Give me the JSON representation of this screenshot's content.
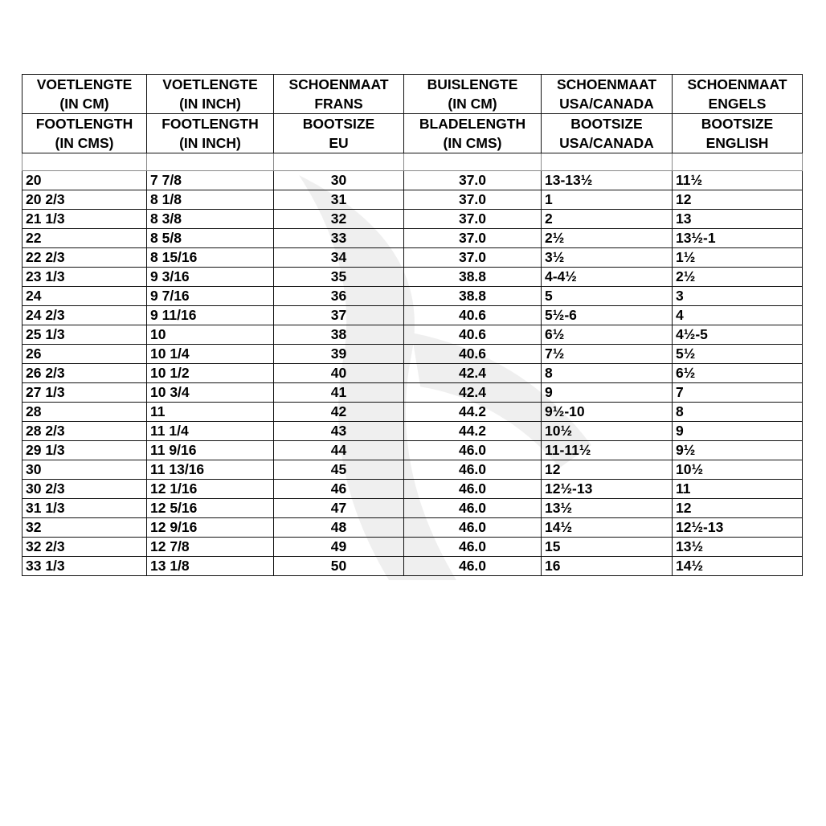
{
  "headers_nl": [
    [
      "VOETLENGTE",
      "(IN CM)"
    ],
    [
      "VOETLENGTE",
      "(IN INCH)"
    ],
    [
      "SCHOENMAAT",
      "FRANS"
    ],
    [
      "BUISLENGTE",
      "(IN CM)"
    ],
    [
      "SCHOENMAAT",
      "USA/CANADA"
    ],
    [
      "SCHOENMAAT",
      "ENGELS"
    ]
  ],
  "headers_en": [
    [
      "FOOTLENGTH",
      "(IN CMS)"
    ],
    [
      "FOOTLENGTH",
      "(IN INCH)"
    ],
    [
      "BOOTSIZE",
      "EU"
    ],
    [
      "BLADELENGTH",
      "(IN CMS)"
    ],
    [
      "BOOTSIZE",
      "USA/CANADA"
    ],
    [
      "BOOTSIZE",
      "ENGLISH"
    ]
  ],
  "rows": [
    [
      "20",
      "7 7/8",
      "30",
      "37.0",
      "13-13½",
      "11½"
    ],
    [
      "20 2/3",
      "8 1/8",
      "31",
      "37.0",
      "1",
      "12"
    ],
    [
      "21 1/3",
      "8 3/8",
      "32",
      "37.0",
      "2",
      "13"
    ],
    [
      "22",
      "8 5/8",
      "33",
      "37.0",
      "2½",
      "13½-1"
    ],
    [
      "22 2/3",
      "8 15/16",
      "34",
      "37.0",
      "3½",
      "1½"
    ],
    [
      "23 1/3",
      "9 3/16",
      "35",
      "38.8",
      "4-4½",
      "2½"
    ],
    [
      "24",
      "9 7/16",
      "36",
      "38.8",
      "5",
      "3"
    ],
    [
      "24 2/3",
      "9 11/16",
      "37",
      "40.6",
      "5½-6",
      "4"
    ],
    [
      "25 1/3",
      "10",
      "38",
      "40.6",
      "6½",
      "4½-5"
    ],
    [
      "26",
      "10 1/4",
      "39",
      "40.6",
      "7½",
      "5½"
    ],
    [
      "26 2/3",
      "10 1/2",
      "40",
      "42.4",
      "8",
      "6½"
    ],
    [
      "27 1/3",
      "10 3/4",
      "41",
      "42.4",
      "9",
      "7"
    ],
    [
      "28",
      "11",
      "42",
      "44.2",
      "9½-10",
      "8"
    ],
    [
      "28 2/3",
      "11 1/4",
      "43",
      "44.2",
      "10½",
      "9"
    ],
    [
      "29 1/3",
      "11 9/16",
      "44",
      "46.0",
      "11-11½",
      "9½"
    ],
    [
      "30",
      "11 13/16",
      "45",
      "46.0",
      "12",
      "10½"
    ],
    [
      "30 2/3",
      "12 1/16",
      "46",
      "46.0",
      "12½-13",
      "11"
    ],
    [
      "31 1/3",
      "12 5/16",
      "47",
      "46.0",
      "13½",
      "12"
    ],
    [
      "32",
      "12 9/16",
      "48",
      "46.0",
      "14½",
      "12½-13"
    ],
    [
      "32 2/3",
      "12 7/8",
      "49",
      "46.0",
      "15",
      "13½"
    ],
    [
      "33 1/3",
      "13 1/8",
      "50",
      "46.0",
      "16",
      "14½"
    ]
  ]
}
